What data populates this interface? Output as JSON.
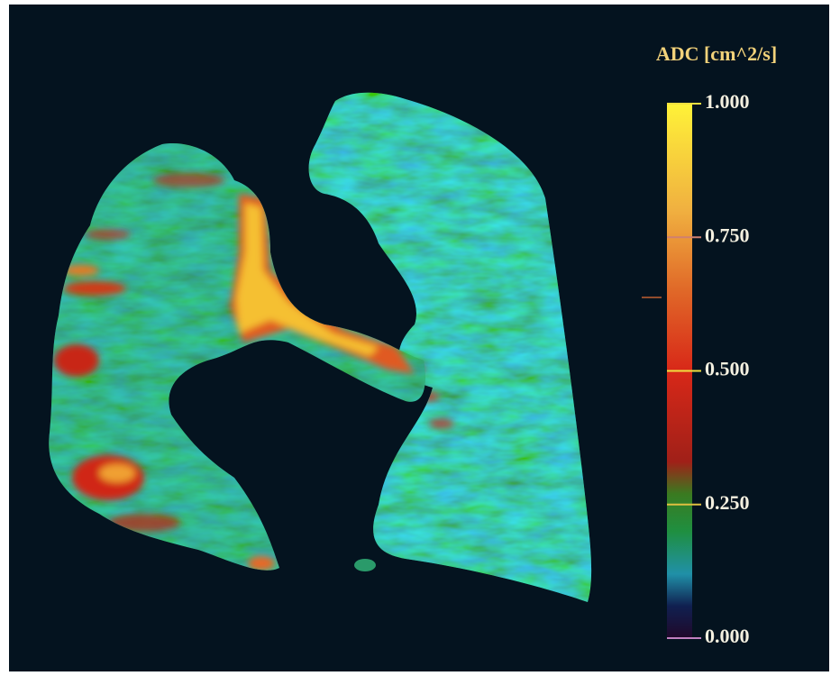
{
  "colorbar": {
    "title": "ADC [cm^2/s]",
    "lim": [
      0,
      1
    ],
    "ticks": [
      {
        "value": 0,
        "label": "0.000"
      },
      {
        "value": 0.25,
        "label": "0.250"
      },
      {
        "value": 0.5,
        "label": "0.500"
      },
      {
        "value": 0.75,
        "label": "0.750"
      },
      {
        "value": 1,
        "label": "1.000"
      }
    ]
  }
}
